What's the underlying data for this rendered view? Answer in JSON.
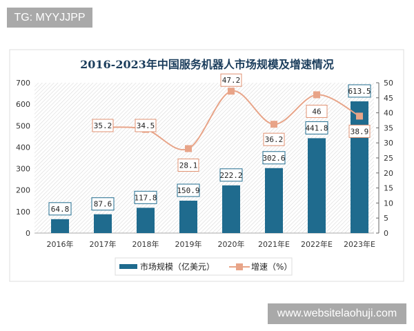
{
  "watermark_top": "TG: MYYJJPP",
  "watermark_bottom": "www.websitelaohuji.com",
  "chart_data": {
    "type": "bar+line",
    "title": "2016-2023年中国服务机器人市场规模及增速情况",
    "categories": [
      "2016年",
      "2017年",
      "2018年",
      "2019年",
      "2020年",
      "2021年E",
      "2022年E",
      "2023年E"
    ],
    "series": [
      {
        "name": "市场规模（亿美元）",
        "type": "bar",
        "axis": "left",
        "color": "#1f6b8e",
        "values": [
          64.8,
          87.6,
          117.8,
          150.9,
          222.2,
          302.6,
          441.8,
          613.5
        ]
      },
      {
        "name": "增速（%）",
        "type": "line",
        "axis": "right",
        "color": "#e8a488",
        "values": [
          null,
          35.2,
          34.5,
          28.1,
          47.2,
          36.2,
          46,
          38.9
        ]
      }
    ],
    "y_left": {
      "range": [
        0,
        700
      ],
      "ticks": [
        "0",
        "100",
        "200",
        "300",
        "400",
        "500",
        "600",
        "700"
      ]
    },
    "y_right": {
      "range": [
        0,
        50
      ],
      "ticks": [
        "0",
        "5",
        "10",
        "15",
        "20",
        "25",
        "30",
        "35",
        "40",
        "45",
        "50"
      ]
    },
    "legend_position": "bottom",
    "grid": false
  }
}
